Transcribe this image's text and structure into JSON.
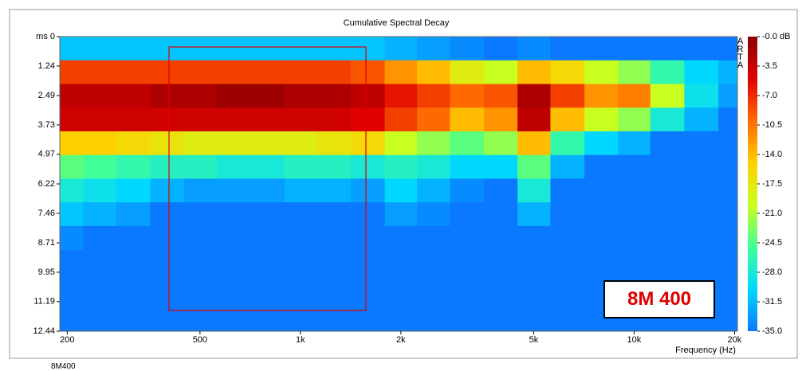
{
  "chart_data": {
    "type": "heatmap",
    "title": "Cumulative Spectral Decay",
    "xlabel": "Frequency (Hz)",
    "log_x": true,
    "x": [
      200,
      250,
      315,
      400,
      500,
      630,
      800,
      1000,
      1250,
      1600,
      2000,
      2500,
      3150,
      4000,
      5000,
      6300,
      8000,
      10000,
      12500,
      16000,
      20000
    ],
    "y": [
      0.5,
      1.5,
      2.5,
      3.5,
      4.5,
      5.5,
      6.5,
      7.5,
      8.5
    ],
    "z": [
      [
        -31,
        -31,
        -31,
        -31,
        -31,
        -31,
        -31,
        -31,
        -31,
        -31,
        -32,
        -33,
        -34,
        -35,
        -34,
        -35,
        -35,
        -35,
        -35,
        -35,
        -35
      ],
      [
        -8,
        -8,
        -8,
        -8,
        -8,
        -8,
        -8,
        -8,
        -8,
        -9,
        -12,
        -14,
        -18,
        -20,
        -14,
        -16,
        -20,
        -22,
        -26,
        -30,
        -32
      ],
      [
        -3,
        -3,
        -3,
        -2,
        -2,
        -1,
        -1,
        -2,
        -2,
        -3,
        -6,
        -8,
        -10,
        -9,
        -2,
        -8,
        -12,
        -11,
        -20,
        -29,
        -33
      ],
      [
        -4,
        -4,
        -4,
        -4,
        -4,
        -4,
        -4,
        -4,
        -4,
        -5,
        -8,
        -10,
        -14,
        -12,
        -3,
        -14,
        -20,
        -22,
        -28,
        -32,
        -35
      ],
      [
        -15,
        -15,
        -16,
        -17,
        -18,
        -18,
        -18,
        -18,
        -17,
        -16,
        -20,
        -22,
        -24,
        -22,
        -14,
        -26,
        -30,
        -32,
        -35,
        -35,
        -35
      ],
      [
        -24,
        -25,
        -26,
        -27,
        -27,
        -28,
        -28,
        -27,
        -27,
        -28,
        -27,
        -28,
        -30,
        -30,
        -24,
        -32,
        -35,
        -35,
        -35,
        -35,
        -35
      ],
      [
        -28,
        -29,
        -30,
        -32,
        -33,
        -33,
        -33,
        -32,
        -32,
        -33,
        -30,
        -32,
        -34,
        -35,
        -28,
        -35,
        -35,
        -35,
        -35,
        -35,
        -35
      ],
      [
        -31,
        -32,
        -33,
        -35,
        -35,
        -35,
        -35,
        -35,
        -35,
        -35,
        -33,
        -34,
        -35,
        -35,
        -32,
        -35,
        -35,
        -35,
        -35,
        -35,
        -35
      ],
      [
        -34,
        -35,
        -35,
        -35,
        -35,
        -35,
        -35,
        -35,
        -35,
        -35,
        -35,
        -35,
        -35,
        -35,
        -35,
        -35,
        -35,
        -35,
        -35,
        -35,
        -35
      ]
    ],
    "xlim": [
      190,
      20400
    ],
    "xticks": [
      200,
      500,
      {
        "value": 1000,
        "label": "1k"
      },
      {
        "value": 2000,
        "label": "2k"
      },
      {
        "value": 5000,
        "label": "5k"
      },
      {
        "value": 10000,
        "label": "10k"
      },
      {
        "value": 20000,
        "label": "20k"
      }
    ],
    "ylim": [
      0,
      12.44
    ],
    "yticks": [
      {
        "value": 0,
        "label": "ms 0"
      },
      1.24,
      2.49,
      3.73,
      4.97,
      6.22,
      7.46,
      8.71,
      9.95,
      11.19,
      12.44
    ],
    "clim": [
      -35,
      0
    ],
    "cticks": [
      {
        "value": 0,
        "label": "-0.0 dB"
      },
      -3.5,
      {
        "value": -7,
        "label": "-7.0"
      },
      -10.5,
      {
        "value": -14,
        "label": "-14.0"
      },
      -17.5,
      {
        "value": -21,
        "label": "-21.0"
      },
      -24.5,
      {
        "value": -28,
        "label": "-28.0"
      },
      -31.5,
      {
        "value": -35,
        "label": "-35.0"
      }
    ],
    "colormap": [
      "#0a78ff",
      "#00d8ff",
      "#40ff98",
      "#c8ff20",
      "#ffd000",
      "#ff6a00",
      "#e00000",
      "#8b0000"
    ],
    "brand": "ARTA",
    "annotation": "8M 400",
    "footer": "8M400"
  }
}
